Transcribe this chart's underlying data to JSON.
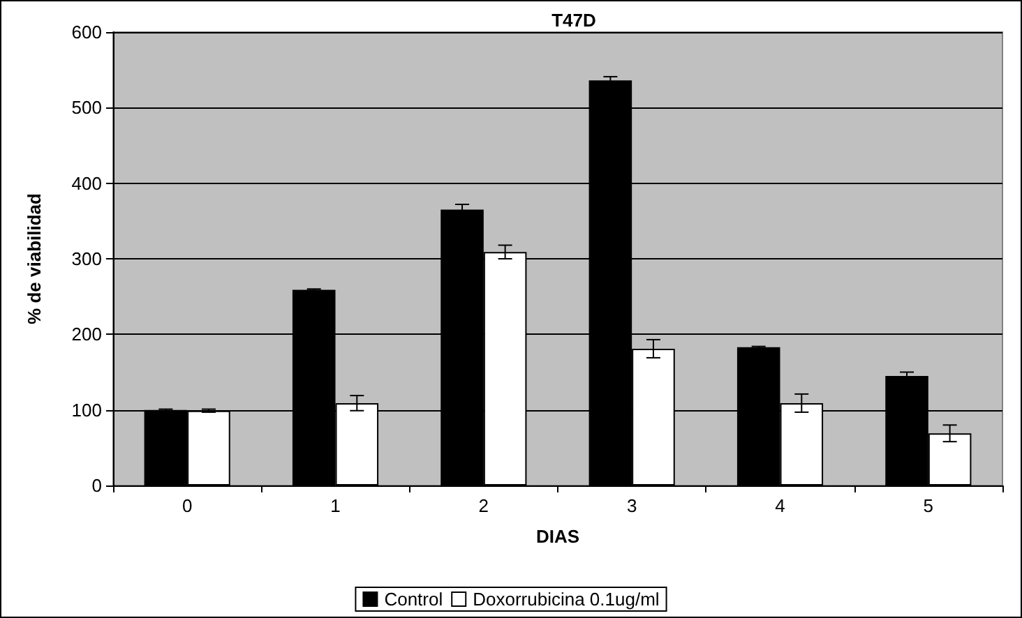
{
  "chart_data": {
    "type": "bar",
    "title": "T47D",
    "xlabel": "DIAS",
    "ylabel": "% de viabilidad",
    "categories": [
      "0",
      "1",
      "2",
      "3",
      "4",
      "5"
    ],
    "series": [
      {
        "name": "Control",
        "color": "#000000",
        "values": [
          100,
          259,
          365,
          536,
          183,
          145
        ],
        "errors": [
          1,
          1,
          7,
          5,
          1,
          5
        ]
      },
      {
        "name": "Doxorrubicina 0.1ug/ml",
        "color": "#ffffff",
        "values": [
          99,
          109,
          309,
          181,
          109,
          69
        ],
        "errors": [
          2,
          10,
          9,
          12,
          12,
          11
        ]
      }
    ],
    "ylim": [
      0,
      600
    ],
    "yticks": [
      0,
      100,
      200,
      300,
      400,
      500,
      600
    ],
    "grid": "y",
    "legend": "bottom"
  }
}
